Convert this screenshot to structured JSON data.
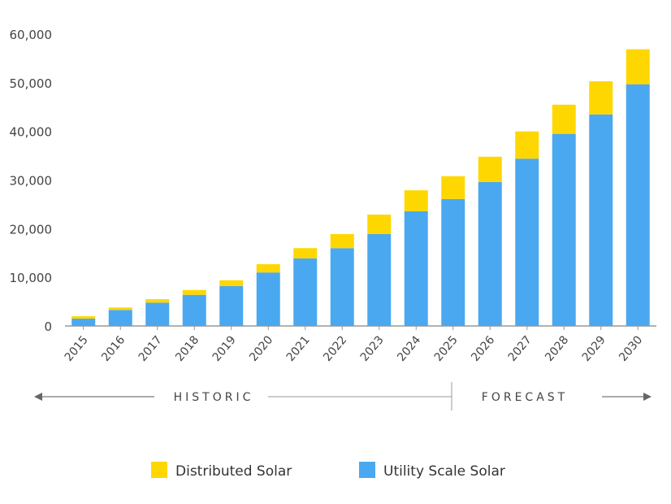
{
  "chart_data": {
    "type": "bar",
    "stacked": true,
    "categories": [
      "2015",
      "2016",
      "2017",
      "2018",
      "2019",
      "2020",
      "2021",
      "2022",
      "2023",
      "2024",
      "2025",
      "2026",
      "2027",
      "2028",
      "2029",
      "2030"
    ],
    "series": [
      {
        "name": "Utility Scale Solar",
        "color": "#4AA8F0",
        "values": [
          1500,
          3300,
          4800,
          6400,
          8200,
          11000,
          13900,
          16000,
          18900,
          23600,
          26100,
          29600,
          34400,
          39500,
          43500,
          49700
        ]
      },
      {
        "name": "Distributed Solar",
        "color": "#FFD700",
        "values": [
          500,
          500,
          700,
          1000,
          1200,
          1700,
          2100,
          2900,
          4000,
          4300,
          4700,
          5200,
          5600,
          6000,
          6800,
          7200
        ]
      }
    ],
    "ylim": [
      0,
      60000
    ],
    "yticks": [
      "0",
      "10,000",
      "20,000",
      "30,000",
      "40,000",
      "50,000",
      "60,000"
    ],
    "grid": false,
    "legend": "bottom",
    "legend_order": [
      "Distributed Solar",
      "Utility Scale Solar"
    ],
    "annotations": {
      "historic": "HISTORIC",
      "forecast": "FORECAST"
    }
  }
}
